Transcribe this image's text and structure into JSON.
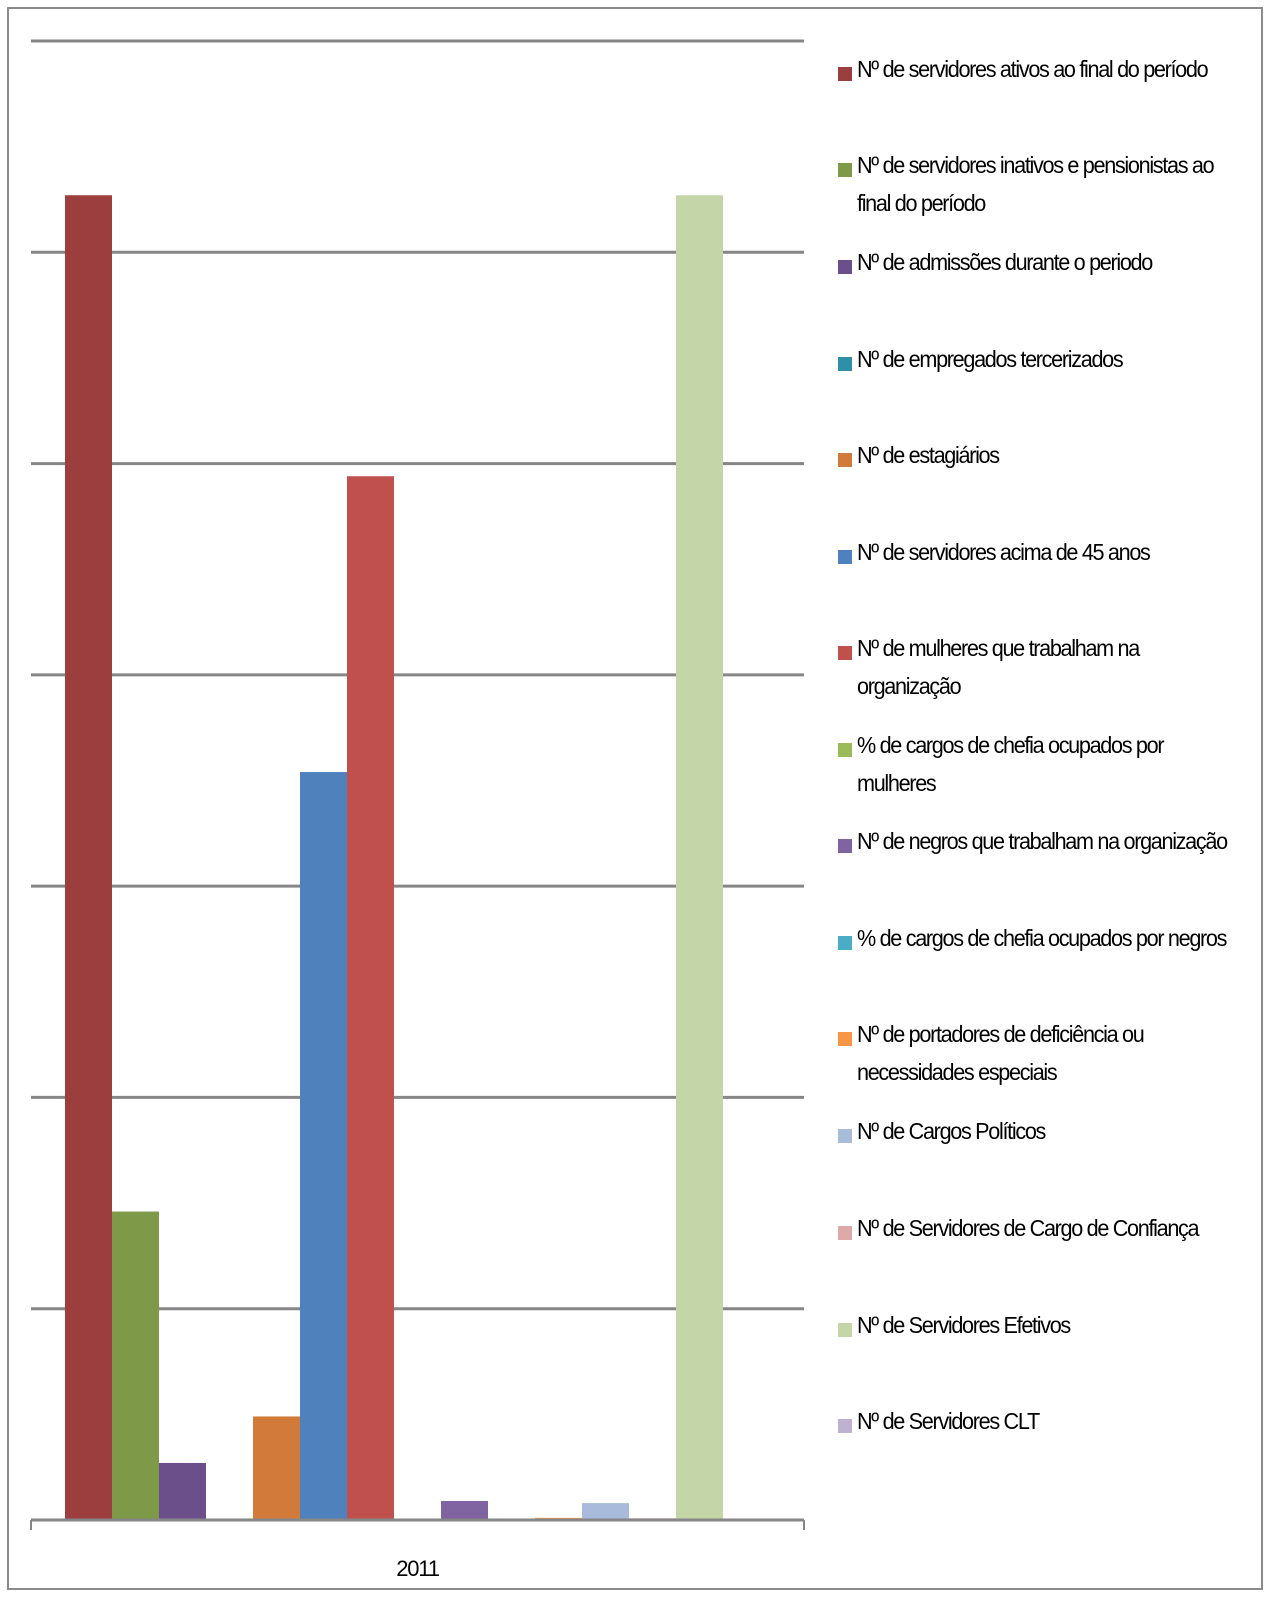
{
  "chart_data": {
    "type": "bar",
    "categories": [
      "2011"
    ],
    "ylim": [
      0,
      7000
    ],
    "grid": true,
    "legend_position": "right",
    "series": [
      {
        "name": "Nº de servidores ativos ao final do período",
        "color": "#9C3E3E",
        "values": [
          6270
        ]
      },
      {
        "name": "Nº de servidores inativos e pensionistas ao final do período",
        "color": "#7E9A48",
        "values": [
          1460
        ]
      },
      {
        "name": "Nº de admissões durante o periodo",
        "color": "#6A4F8A",
        "values": [
          270
        ]
      },
      {
        "name": "Nº de empregados tercerizados",
        "color": "#2E8FA8",
        "values": [
          0
        ]
      },
      {
        "name": "Nº de estagiários",
        "color": "#D27A3A",
        "values": [
          490
        ]
      },
      {
        "name": "Nº de servidores acima de 45 anos",
        "color": "#4F81BD",
        "values": [
          3540
        ]
      },
      {
        "name": "Nº de mulheres que trabalham na organização",
        "color": "#C0504D",
        "values": [
          4940
        ]
      },
      {
        "name": "% de cargos de chefia ocupados por mulheres",
        "color": "#9BBB59",
        "values": [
          0
        ]
      },
      {
        "name": "Nº de negros que trabalham na organização",
        "color": "#8064A2",
        "values": [
          90
        ]
      },
      {
        "name": "% de cargos de chefia ocupados por negros",
        "color": "#4BACC6",
        "values": [
          0
        ]
      },
      {
        "name": "Nº de portadores de deficiência ou necessidades especiais",
        "color": "#F79646",
        "values": [
          10
        ]
      },
      {
        "name": "Nº de Cargos Políticos",
        "color": "#A9BBDA",
        "values": [
          80
        ]
      },
      {
        "name": "Nº de Servidores de Cargo de Confiança",
        "color": "#DCAAA8",
        "values": [
          8
        ]
      },
      {
        "name": "Nº de Servidores Efetivos",
        "color": "#C4D6A8",
        "values": [
          6270
        ]
      },
      {
        "name": "Nº de Servidores CLT",
        "color": "#BFB2D0",
        "values": [
          0
        ]
      }
    ]
  }
}
